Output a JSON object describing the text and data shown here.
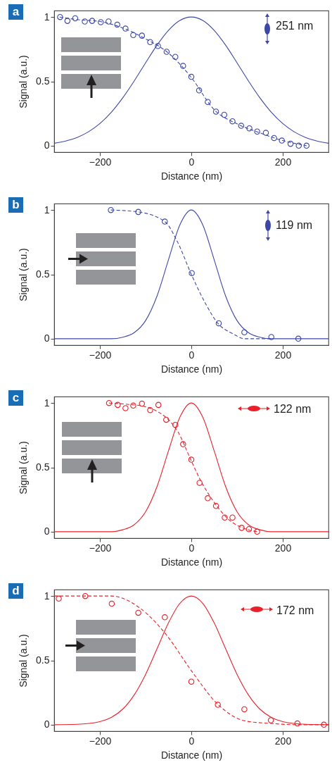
{
  "chart_data": [
    {
      "type": "line",
      "title": "a",
      "xlabel": "Distance (nm)",
      "ylabel": "Signal (a.u.)",
      "annotations": [
        "251 nm"
      ],
      "xlim": [
        -300,
        300
      ],
      "xticks": [
        -200,
        0,
        200
      ],
      "ylim": [
        -0.05,
        1.05
      ],
      "yticks": [
        0,
        0.5,
        1
      ],
      "series": [
        {
          "type": "line",
          "line_style": "solid",
          "color": "#3d47a6",
          "x": [
            -300,
            -275,
            -250,
            -225,
            -200,
            -175,
            -150,
            -125,
            -100,
            -75,
            -50,
            -25,
            0,
            25,
            50,
            75,
            100,
            125,
            150,
            175,
            200,
            225,
            250,
            275,
            300
          ],
          "values": [
            0.019,
            0.036,
            0.064,
            0.108,
            0.172,
            0.26,
            0.372,
            0.503,
            0.644,
            0.781,
            0.896,
            0.973,
            1,
            0.973,
            0.896,
            0.781,
            0.644,
            0.503,
            0.372,
            0.26,
            0.172,
            0.108,
            0.064,
            0.036,
            0.019
          ]
        },
        {
          "type": "line",
          "line_style": "dashed",
          "color": "#3d47a6",
          "x": [
            -288,
            -250,
            -200,
            -150,
            -100,
            -50,
            0,
            50,
            100,
            150,
            200,
            252
          ],
          "values": [
            1.0,
            0.98,
            0.965,
            0.915,
            0.83,
            0.72,
            0.53,
            0.28,
            0.17,
            0.1,
            0.04,
            0.0
          ]
        },
        {
          "type": "scatter",
          "marker": "circle",
          "color": "#3d47a6",
          "x": [
            -287,
            -271,
            -254,
            -233,
            -217,
            -198,
            -181,
            -162,
            -144,
            -127,
            -108,
            -90,
            -73,
            -54,
            -35,
            -18,
            0,
            17,
            36,
            54,
            72,
            90,
            109,
            127,
            144,
            163,
            181,
            198,
            217,
            235,
            252
          ],
          "values": [
            1.0,
            0.97,
            0.99,
            0.965,
            0.97,
            0.96,
            0.965,
            0.94,
            0.91,
            0.86,
            0.855,
            0.805,
            0.775,
            0.73,
            0.69,
            0.62,
            0.535,
            0.43,
            0.34,
            0.265,
            0.24,
            0.19,
            0.155,
            0.135,
            0.11,
            0.1,
            0.06,
            0.04,
            0.015,
            0.0,
            0.0
          ]
        }
      ]
    },
    {
      "type": "line",
      "title": "b",
      "xlabel": "Distance (nm)",
      "ylabel": "Signal (a.u.)",
      "annotations": [
        "119 nm"
      ],
      "xlim": [
        -300,
        300
      ],
      "xticks": [
        -200,
        0,
        200
      ],
      "ylim": [
        -0.05,
        1.05
      ],
      "yticks": [
        0,
        0.5,
        1
      ],
      "series": [
        {
          "type": "line",
          "line_style": "solid",
          "color": "#3d47a6",
          "x": [
            -300,
            -200,
            -175,
            -150,
            -125,
            -100,
            -75,
            -50,
            -25,
            0,
            25,
            50,
            75,
            100,
            125,
            150,
            175,
            200,
            300
          ],
          "values": [
            0,
            0,
            0,
            0.012,
            0.047,
            0.141,
            0.332,
            0.613,
            0.885,
            1,
            0.885,
            0.613,
            0.332,
            0.141,
            0.047,
            0.012,
            0,
            0,
            0
          ]
        },
        {
          "type": "line",
          "line_style": "dashed",
          "color": "#3d47a6",
          "x": [
            -176,
            -116,
            -58,
            -30,
            0,
            30,
            58,
            90,
            117,
            175
          ],
          "values": [
            1.0,
            0.985,
            0.91,
            0.75,
            0.5,
            0.28,
            0.12,
            0.04,
            0.0,
            0.0
          ]
        },
        {
          "type": "scatter",
          "marker": "circle",
          "color": "#3d47a6",
          "x": [
            -176,
            -116,
            -58,
            1,
            60,
            116,
            175,
            234
          ],
          "values": [
            1.0,
            0.985,
            0.91,
            0.51,
            0.12,
            0.05,
            0.013,
            0.0
          ]
        }
      ]
    },
    {
      "type": "line",
      "title": "c",
      "xlabel": "Distance (nm)",
      "ylabel": "Signal (a.u.)",
      "annotations": [
        "122 nm"
      ],
      "xlim": [
        -300,
        300
      ],
      "xticks": [
        -200,
        0,
        200
      ],
      "ylim": [
        -0.05,
        1.05
      ],
      "yticks": [
        0,
        0.5,
        1
      ],
      "series": [
        {
          "type": "line",
          "line_style": "solid",
          "color": "#e8212b",
          "x": [
            -300,
            -200,
            -175,
            -150,
            -125,
            -100,
            -75,
            -50,
            -25,
            0,
            25,
            50,
            75,
            100,
            125,
            150,
            175,
            200,
            300
          ],
          "values": [
            0,
            0,
            0,
            0.015,
            0.054,
            0.155,
            0.351,
            0.628,
            0.89,
            1,
            0.89,
            0.628,
            0.351,
            0.155,
            0.054,
            0.015,
            0,
            0,
            0
          ]
        },
        {
          "type": "line",
          "line_style": "dashed",
          "color": "#e8212b",
          "x": [
            -180,
            -140,
            -100,
            -72,
            -50,
            -30,
            0,
            20,
            40,
            60,
            80,
            100,
            120,
            144
          ],
          "values": [
            1.0,
            0.99,
            0.97,
            0.93,
            0.87,
            0.78,
            0.55,
            0.4,
            0.28,
            0.18,
            0.1,
            0.05,
            0.02,
            0.0
          ]
        },
        {
          "type": "scatter",
          "marker": "circle",
          "color": "#e8212b",
          "x": [
            -180,
            -161,
            -144,
            -127,
            -108,
            -90,
            -72,
            -55,
            -35,
            -18,
            0,
            18,
            36,
            54,
            73,
            90,
            110,
            126,
            144
          ],
          "values": [
            1.0,
            0.985,
            0.96,
            0.98,
            0.995,
            0.945,
            0.985,
            0.87,
            0.83,
            0.68,
            0.56,
            0.38,
            0.26,
            0.2,
            0.11,
            0.11,
            0.03,
            0.02,
            0.0
          ]
        }
      ]
    },
    {
      "type": "line",
      "title": "d",
      "xlabel": "Distance (nm)",
      "ylabel": "Signal (a.u.)",
      "annotations": [
        "172 nm"
      ],
      "xlim": [
        -300,
        300
      ],
      "xticks": [
        -200,
        0,
        200
      ],
      "ylim": [
        -0.05,
        1.05
      ],
      "yticks": [
        0,
        0.5,
        1
      ],
      "series": [
        {
          "type": "line",
          "line_style": "solid",
          "color": "#e8212b",
          "x": [
            -300,
            -250,
            -200,
            -175,
            -150,
            -125,
            -100,
            -75,
            -50,
            -25,
            0,
            25,
            50,
            75,
            100,
            125,
            150,
            175,
            200,
            250,
            300
          ],
          "values": [
            0,
            0.003,
            0.024,
            0.057,
            0.121,
            0.231,
            0.391,
            0.59,
            0.791,
            0.943,
            1,
            0.943,
            0.791,
            0.59,
            0.391,
            0.231,
            0.121,
            0.057,
            0.024,
            0.003,
            0
          ]
        },
        {
          "type": "line",
          "line_style": "dashed",
          "color": "#e8212b",
          "x": [
            -300,
            -176,
            -110,
            -55,
            0,
            59,
            117,
            173,
            233,
            300
          ],
          "values": [
            1.0,
            1.0,
            0.9,
            0.7,
            0.42,
            0.155,
            0.03,
            0.01,
            0.0,
            0.0
          ]
        },
        {
          "type": "scatter",
          "marker": "circle",
          "color": "#e8212b",
          "x": [
            -290,
            -232,
            -174,
            -116,
            -58,
            0,
            58,
            116,
            174,
            232,
            290
          ],
          "values": [
            0.98,
            1.0,
            0.94,
            0.87,
            0.835,
            0.335,
            0.155,
            0.12,
            0.035,
            0.01,
            0.0
          ]
        }
      ]
    }
  ]
}
